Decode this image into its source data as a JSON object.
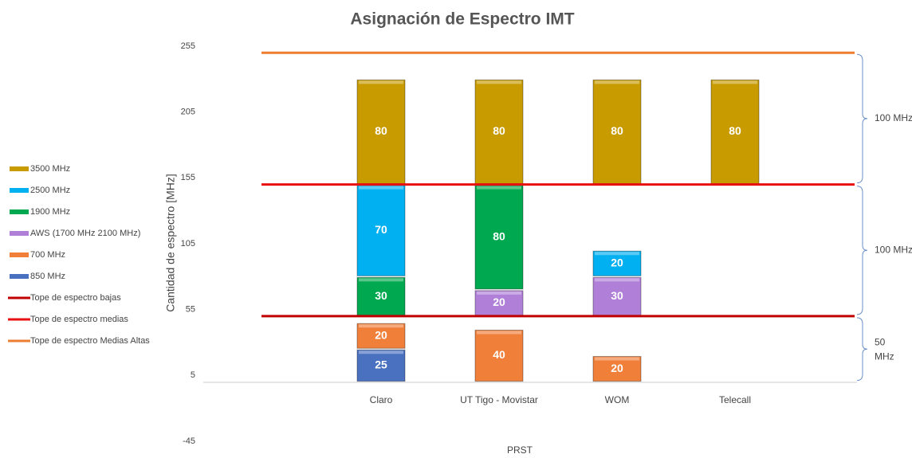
{
  "chart_data": {
    "type": "stacked_bar",
    "title": "Asignación de Espectro IMT",
    "ylabel": "Cantidad de espectro [MHz]",
    "xlabel": "PRST",
    "categories": [
      "Claro",
      "UT Tigo - Movistar",
      "WOM",
      "Telecall"
    ],
    "series": [
      {
        "name": "3500 MHz",
        "color": "#c89b00",
        "values": [
          80,
          80,
          80,
          80
        ]
      },
      {
        "name": "2500 MHz",
        "color": "#00b0f0",
        "values": [
          70,
          null,
          20,
          null
        ]
      },
      {
        "name": "1900 MHz",
        "color": "#00a84f",
        "values": [
          30,
          80,
          null,
          null
        ]
      },
      {
        "name": "AWS (1700 MHz 2100 MHz)",
        "color": "#b07fd8",
        "values": [
          null,
          20,
          30,
          null
        ]
      },
      {
        "name": "700 MHz",
        "color": "#f07f3a",
        "values": [
          20,
          40,
          20,
          null
        ]
      },
      {
        "name": "850 MHz",
        "color": "#4a70c0",
        "values": [
          25,
          null,
          null,
          null
        ]
      }
    ],
    "reference_lines": [
      {
        "name": "Tope de espectro bajas",
        "value": 50,
        "color": "#c00000"
      },
      {
        "name": "Tope de espectro medias",
        "value": 150,
        "color": "#e81010"
      },
      {
        "name": "Tope de espectro Medias Altas",
        "value": 250,
        "color": "#ed7d31"
      }
    ],
    "annotations": [
      "50 MHz",
      "100 MHz",
      "100 MHz"
    ],
    "ylim": [
      -45,
      255
    ],
    "yticks": [
      -45,
      5,
      55,
      105,
      155,
      205,
      255
    ],
    "legend": "left"
  }
}
